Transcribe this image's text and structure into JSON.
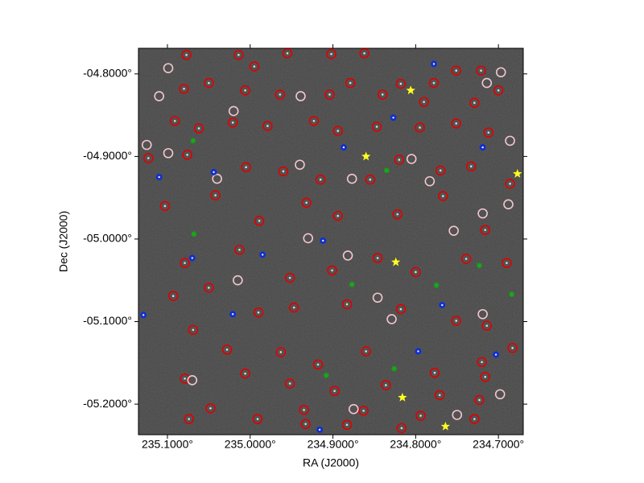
{
  "chart_data": {
    "type": "scatter",
    "x_label": "RA (J2000)",
    "y_label": "Dec (J2000)",
    "xlim": [
      235.135,
      234.67
    ],
    "ylim": [
      -5.237,
      -4.769
    ],
    "xticks": [
      {
        "value": 235.1,
        "label": "235.1000°"
      },
      {
        "value": 235.0,
        "label": "235.0000°"
      },
      {
        "value": 234.9,
        "label": "234.9000°"
      },
      {
        "value": 234.8,
        "label": "234.8000°"
      },
      {
        "value": 234.7,
        "label": "234.7000°"
      }
    ],
    "yticks": [
      {
        "value": -4.8,
        "label": "-04.8000°"
      },
      {
        "value": -4.9,
        "label": "-04.9000°"
      },
      {
        "value": -5.0,
        "label": "-05.0000°"
      },
      {
        "value": -5.1,
        "label": "-05.1000°"
      },
      {
        "value": -5.2,
        "label": "-05.2000°"
      }
    ],
    "series": [
      {
        "color": "#e00000",
        "marker": "ring-dot",
        "x": [
          235.077,
          235.014,
          234.995,
          234.955,
          234.902,
          234.862,
          234.818,
          234.778,
          234.751,
          234.721,
          235.08,
          235.05,
          235.006,
          234.964,
          234.904,
          234.879,
          234.84,
          234.79,
          234.729,
          234.7,
          235.091,
          235.062,
          235.021,
          234.979,
          234.923,
          234.894,
          234.847,
          234.795,
          234.751,
          234.712,
          235.123,
          235.076,
          235.005,
          234.96,
          234.915,
          234.855,
          234.82,
          234.77,
          234.733,
          234.686,
          235.103,
          235.042,
          234.989,
          234.932,
          234.894,
          234.822,
          234.767,
          234.716,
          235.079,
          235.013,
          234.952,
          234.901,
          234.846,
          234.8,
          234.739,
          234.69,
          235.093,
          235.05,
          234.99,
          234.947,
          234.883,
          234.818,
          234.751,
          234.714,
          235.069,
          235.028,
          234.963,
          234.918,
          234.86,
          234.777,
          234.72,
          234.683,
          235.079,
          235.006,
          234.952,
          234.898,
          234.836,
          234.771,
          234.716,
          235.048,
          234.991,
          234.935,
          234.863,
          234.794,
          234.723,
          235.074,
          234.933,
          234.883,
          234.817,
          234.729
        ],
        "values": [
          -4.777,
          -4.777,
          -4.791,
          -4.775,
          -4.776,
          -4.775,
          -4.812,
          -4.811,
          -4.796,
          -4.796,
          -4.818,
          -4.811,
          -4.82,
          -4.825,
          -4.825,
          -4.811,
          -4.825,
          -4.834,
          -4.835,
          -4.82,
          -4.857,
          -4.866,
          -4.859,
          -4.863,
          -4.857,
          -4.869,
          -4.864,
          -4.865,
          -4.86,
          -4.871,
          -4.902,
          -4.898,
          -4.913,
          -4.918,
          -4.928,
          -4.928,
          -4.904,
          -4.917,
          -4.912,
          -4.933,
          -4.96,
          -4.947,
          -4.978,
          -4.956,
          -4.972,
          -4.97,
          -4.948,
          -4.989,
          -5.029,
          -5.013,
          -5.047,
          -5.038,
          -5.023,
          -5.04,
          -5.024,
          -5.029,
          -5.069,
          -5.059,
          -5.089,
          -5.083,
          -5.079,
          -5.085,
          -5.099,
          -5.105,
          -5.11,
          -5.134,
          -5.137,
          -5.152,
          -5.136,
          -5.162,
          -5.149,
          -5.132,
          -5.169,
          -5.163,
          -5.175,
          -5.184,
          -5.177,
          -5.189,
          -5.167,
          -5.205,
          -5.218,
          -5.207,
          -5.208,
          -5.214,
          -5.195,
          -5.218,
          -5.224,
          -5.225,
          -5.229,
          -5.218
        ]
      },
      {
        "color": "#f4c6cf",
        "marker": "ring",
        "x": [
          235.099,
          235.11,
          235.02,
          234.939,
          234.714,
          234.697,
          235.099,
          235.04,
          234.94,
          234.877,
          234.805,
          234.686,
          234.688,
          234.754,
          234.719,
          234.93,
          234.882,
          234.829,
          234.846,
          235.015,
          235.07,
          234.875,
          234.75,
          234.698,
          234.719,
          234.783,
          235.125
        ],
        "values": [
          -4.793,
          -4.827,
          -4.845,
          -4.827,
          -4.811,
          -4.798,
          -4.896,
          -4.927,
          -4.91,
          -4.927,
          -4.903,
          -4.881,
          -4.958,
          -4.99,
          -4.969,
          -4.999,
          -5.02,
          -5.097,
          -5.071,
          -5.05,
          -5.171,
          -5.206,
          -5.213,
          -5.188,
          -5.091,
          -4.93,
          -4.886
        ]
      },
      {
        "color": "#1030d0",
        "marker": "disc",
        "x": [
          235.11,
          235.044,
          234.912,
          234.985,
          235.07,
          235.021,
          234.768,
          234.703,
          234.797,
          234.916,
          234.778,
          234.719,
          234.887,
          234.827,
          235.129
        ],
        "values": [
          -4.925,
          -4.919,
          -5.002,
          -5.019,
          -5.023,
          -5.091,
          -5.08,
          -5.14,
          -5.136,
          -5.231,
          -4.788,
          -4.889,
          -4.889,
          -4.853,
          -5.092
        ]
      },
      {
        "color": "#10b010",
        "marker": "cross",
        "x": [
          235.068,
          235.069,
          234.835,
          234.877,
          234.775,
          234.723,
          234.684,
          234.826,
          234.908
        ],
        "values": [
          -4.994,
          -4.881,
          -4.917,
          -5.055,
          -5.056,
          -5.032,
          -5.067,
          -5.157,
          -5.165
        ]
      },
      {
        "color": "#ffff20",
        "marker": "star",
        "x": [
          234.806,
          234.86,
          234.824,
          234.816,
          234.764,
          234.677
        ],
        "values": [
          -4.82,
          -4.9,
          -5.028,
          -5.192,
          -5.227,
          -4.921
        ]
      }
    ]
  }
}
